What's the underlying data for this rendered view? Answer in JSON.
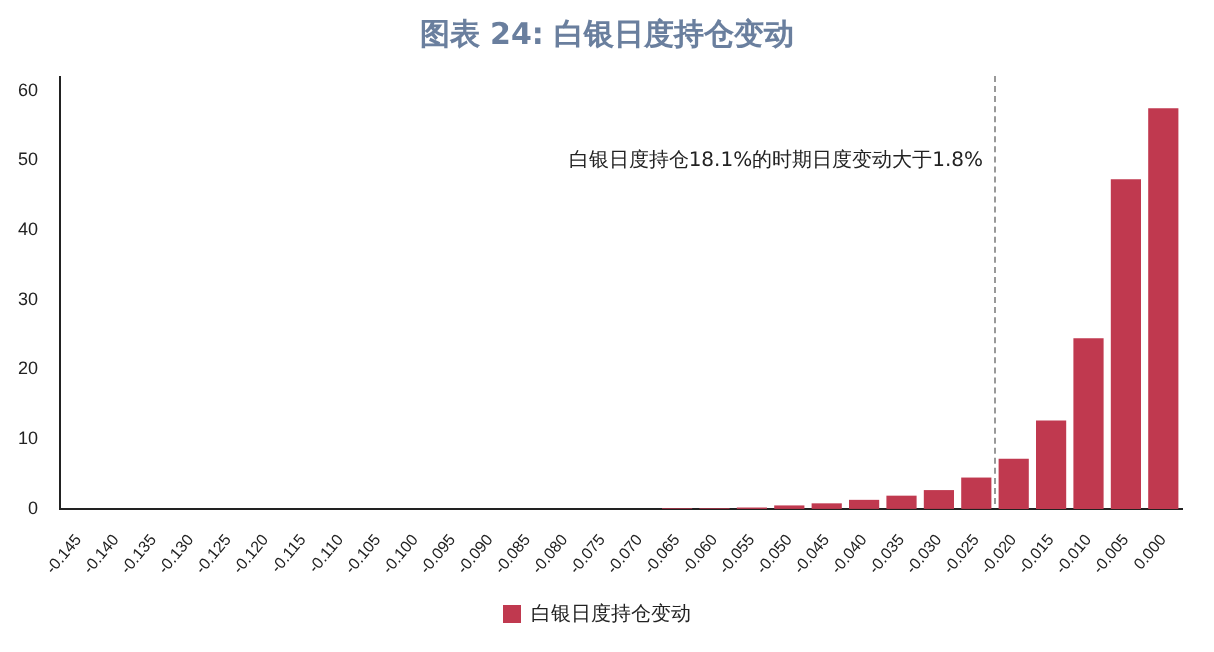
{
  "chart_data": {
    "type": "bar",
    "title": "图表 24: 白银日度持仓变动",
    "categories": [
      "-0.145",
      "-0.140",
      "-0.135",
      "-0.130",
      "-0.125",
      "-0.120",
      "-0.115",
      "-0.110",
      "-0.105",
      "-0.100",
      "-0.095",
      "-0.090",
      "-0.085",
      "-0.080",
      "-0.075",
      "-0.070",
      "-0.065",
      "-0.060",
      "-0.055",
      "-0.050",
      "-0.045",
      "-0.040",
      "-0.035",
      "-0.030",
      "-0.025",
      "-0.020",
      "-0.015",
      "-0.010",
      "-0.005",
      "0.000"
    ],
    "series": [
      {
        "name": "白银日度持仓变动",
        "color": "#c0394f",
        "values": [
          0,
          0,
          0,
          0,
          0,
          0,
          0,
          0,
          0,
          0,
          0,
          0,
          0,
          0,
          0,
          0,
          0.1,
          0.1,
          0.2,
          0.5,
          0.8,
          1.3,
          1.9,
          2.7,
          4.5,
          7.2,
          12.7,
          24.5,
          47.3,
          57.5
        ]
      }
    ],
    "ylim": [
      0,
      62
    ],
    "yticks": [
      0,
      10,
      20,
      30,
      40,
      50,
      60
    ],
    "grid": false,
    "legend": "bottom",
    "annotations": [
      "白银日度持仓18.1%的时期日度变动大于1.8%"
    ]
  }
}
